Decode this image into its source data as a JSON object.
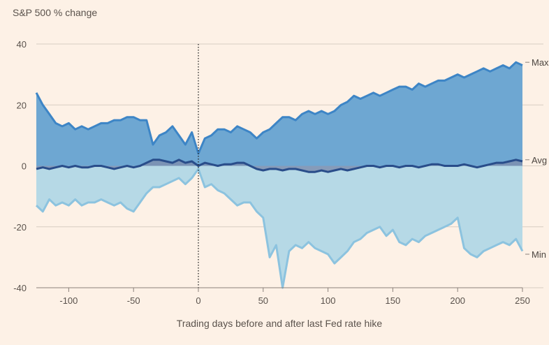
{
  "chart_data": {
    "type": "area",
    "title": "S&P 500 % change",
    "xlabel": "Trading days before and after last Fed rate hike",
    "ylabel": "",
    "xlim": [
      -125,
      250
    ],
    "ylim": [
      -40,
      40
    ],
    "x_ticks": [
      -100,
      -50,
      0,
      50,
      100,
      150,
      200,
      250
    ],
    "y_ticks": [
      40,
      20,
      0,
      -20,
      -40
    ],
    "grid": true,
    "reference_line_x": 0,
    "colors": {
      "max_fill": "#6ea7d2",
      "max_line": "#3d85c6",
      "min_fill": "#b6d9e6",
      "min_line": "#8cc3df",
      "avg_line": "#294d8a",
      "avg_fill": "#7e8fb0",
      "grid": "#d8cdc2"
    },
    "series": [
      {
        "name": "Max",
        "x": [
          -125,
          -120,
          -115,
          -110,
          -105,
          -100,
          -95,
          -90,
          -85,
          -80,
          -75,
          -70,
          -65,
          -60,
          -55,
          -50,
          -45,
          -40,
          -35,
          -30,
          -25,
          -20,
          -15,
          -10,
          -5,
          0,
          5,
          10,
          15,
          20,
          25,
          30,
          35,
          40,
          45,
          50,
          55,
          60,
          65,
          70,
          75,
          80,
          85,
          90,
          95,
          100,
          105,
          110,
          115,
          120,
          125,
          130,
          135,
          140,
          145,
          150,
          155,
          160,
          165,
          170,
          175,
          180,
          185,
          190,
          195,
          200,
          205,
          210,
          215,
          220,
          225,
          230,
          235,
          240,
          245,
          250
        ],
        "values": [
          24,
          20,
          17,
          14,
          13,
          14,
          12,
          13,
          12,
          13,
          14,
          14,
          15,
          15,
          16,
          16,
          15,
          15,
          7,
          10,
          11,
          13,
          10,
          7,
          11,
          4,
          9,
          10,
          12,
          12,
          11,
          13,
          12,
          11,
          9,
          11,
          12,
          14,
          16,
          16,
          15,
          17,
          18,
          17,
          18,
          17,
          18,
          20,
          21,
          23,
          22,
          23,
          24,
          23,
          24,
          25,
          26,
          26,
          25,
          27,
          26,
          27,
          28,
          28,
          29,
          30,
          29,
          30,
          31,
          32,
          31,
          32,
          33,
          32,
          34,
          33
        ]
      },
      {
        "name": "Avg",
        "x": [
          -125,
          -120,
          -115,
          -110,
          -105,
          -100,
          -95,
          -90,
          -85,
          -80,
          -75,
          -70,
          -65,
          -60,
          -55,
          -50,
          -45,
          -40,
          -35,
          -30,
          -25,
          -20,
          -15,
          -10,
          -5,
          0,
          5,
          10,
          15,
          20,
          25,
          30,
          35,
          40,
          45,
          50,
          55,
          60,
          65,
          70,
          75,
          80,
          85,
          90,
          95,
          100,
          105,
          110,
          115,
          120,
          125,
          130,
          135,
          140,
          145,
          150,
          155,
          160,
          165,
          170,
          175,
          180,
          185,
          190,
          195,
          200,
          205,
          210,
          215,
          220,
          225,
          230,
          235,
          240,
          245,
          250
        ],
        "values": [
          -1,
          -0.5,
          -1,
          -0.5,
          0,
          -0.5,
          0,
          -0.5,
          -0.5,
          0,
          0,
          -0.5,
          -1,
          -0.5,
          0,
          -0.5,
          0,
          1,
          2,
          2,
          1.5,
          1,
          2,
          1,
          1.5,
          0,
          1,
          0.5,
          0,
          0.5,
          0.5,
          1,
          1,
          0,
          -1,
          -1.5,
          -1,
          -1,
          -1.5,
          -1,
          -1,
          -1.5,
          -2,
          -2,
          -1.5,
          -2,
          -1.5,
          -1,
          -1.5,
          -1,
          -0.5,
          0,
          0,
          -0.5,
          0,
          0,
          -0.5,
          0,
          0,
          -0.5,
          0,
          0.5,
          0.5,
          0,
          0,
          0,
          0.5,
          0,
          -0.5,
          0,
          0.5,
          1,
          1,
          1.5,
          2,
          1.5
        ]
      },
      {
        "name": "Min",
        "x": [
          -125,
          -120,
          -115,
          -110,
          -105,
          -100,
          -95,
          -90,
          -85,
          -80,
          -75,
          -70,
          -65,
          -60,
          -55,
          -50,
          -45,
          -40,
          -35,
          -30,
          -25,
          -20,
          -15,
          -10,
          -5,
          0,
          5,
          10,
          15,
          20,
          25,
          30,
          35,
          40,
          45,
          50,
          55,
          60,
          65,
          70,
          75,
          80,
          85,
          90,
          95,
          100,
          105,
          110,
          115,
          120,
          125,
          130,
          135,
          140,
          145,
          150,
          155,
          160,
          165,
          170,
          175,
          180,
          185,
          190,
          195,
          200,
          205,
          210,
          215,
          220,
          225,
          230,
          235,
          240,
          245,
          250
        ],
        "values": [
          -13,
          -15,
          -11,
          -13,
          -12,
          -13,
          -11,
          -13,
          -12,
          -12,
          -11,
          -12,
          -13,
          -12,
          -14,
          -15,
          -12,
          -9,
          -7,
          -7,
          -6,
          -5,
          -4,
          -6,
          -4,
          -1,
          -7,
          -6,
          -8,
          -9,
          -11,
          -13,
          -12,
          -12,
          -15,
          -17,
          -30,
          -26,
          -40,
          -28,
          -26,
          -27,
          -25,
          -27,
          -28,
          -29,
          -32,
          -30,
          -28,
          -25,
          -24,
          -22,
          -21,
          -20,
          -23,
          -21,
          -25,
          -26,
          -24,
          -25,
          -23,
          -22,
          -21,
          -20,
          -19,
          -17,
          -27,
          -29,
          -30,
          -28,
          -27,
          -26,
          -25,
          -26,
          -24,
          -28
        ]
      }
    ],
    "series_labels": [
      "Max",
      "Avg",
      "Min"
    ]
  }
}
